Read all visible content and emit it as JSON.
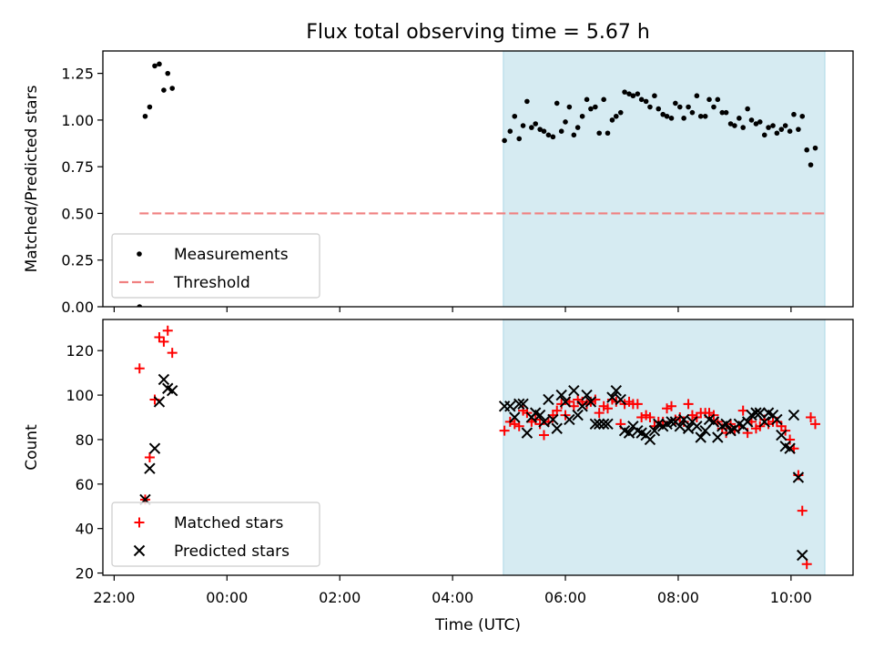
{
  "figure": {
    "title": "Flux total observing time = 5.67 h",
    "xlabel": "Time (UTC)",
    "x_ticks": [
      "22:00",
      "00:00",
      "02:00",
      "04:00",
      "06:00",
      "08:00",
      "10:00"
    ],
    "x_tick_hours": [
      -2,
      0,
      2,
      4,
      6,
      8,
      10
    ],
    "xlim_hours": [
      -2.2,
      11.1
    ],
    "shade_hours": [
      4.9,
      10.6
    ],
    "colors": {
      "shade": "#add8e6",
      "threshold": "#f08080",
      "matched": "#ff0000",
      "predicted": "#000000",
      "measurement": "#000000"
    }
  },
  "chart_data": [
    {
      "type": "scatter",
      "ylabel": "Matched/Predicted stars",
      "ylim": [
        0,
        1.37
      ],
      "y_ticks": [
        "0.00",
        "0.25",
        "0.50",
        "0.75",
        "1.00",
        "1.25"
      ],
      "y_tick_values": [
        0,
        0.25,
        0.5,
        0.75,
        1.0,
        1.25
      ],
      "threshold": {
        "name": "Threshold",
        "value": 0.5,
        "x_range_hours": [
          -1.55,
          10.6
        ]
      },
      "legend": {
        "placement": "lower-left",
        "entries": [
          "Measurements",
          "Threshold"
        ]
      },
      "series": [
        {
          "name": "Measurements",
          "marker": "dot",
          "points": [
            [
              -1.55,
              0.0
            ],
            [
              -1.45,
              1.02
            ],
            [
              -1.37,
              1.07
            ],
            [
              -1.28,
              1.29
            ],
            [
              -1.2,
              1.3
            ],
            [
              -1.12,
              1.16
            ],
            [
              -1.05,
              1.25
            ],
            [
              -0.97,
              1.17
            ],
            [
              4.92,
              0.89
            ],
            [
              5.02,
              0.94
            ],
            [
              5.1,
              1.02
            ],
            [
              5.18,
              0.9
            ],
            [
              5.25,
              0.97
            ],
            [
              5.32,
              1.1
            ],
            [
              5.4,
              0.96
            ],
            [
              5.47,
              0.98
            ],
            [
              5.55,
              0.95
            ],
            [
              5.62,
              0.94
            ],
            [
              5.7,
              0.92
            ],
            [
              5.78,
              0.91
            ],
            [
              5.85,
              1.09
            ],
            [
              5.93,
              0.94
            ],
            [
              6.0,
              0.99
            ],
            [
              6.07,
              1.07
            ],
            [
              6.15,
              0.92
            ],
            [
              6.22,
              0.96
            ],
            [
              6.3,
              1.02
            ],
            [
              6.38,
              1.11
            ],
            [
              6.45,
              1.06
            ],
            [
              6.53,
              1.07
            ],
            [
              6.6,
              0.93
            ],
            [
              6.68,
              1.11
            ],
            [
              6.75,
              0.93
            ],
            [
              6.83,
              1.0
            ],
            [
              6.9,
              1.02
            ],
            [
              6.98,
              1.04
            ],
            [
              7.05,
              1.15
            ],
            [
              7.13,
              1.14
            ],
            [
              7.2,
              1.13
            ],
            [
              7.28,
              1.14
            ],
            [
              7.35,
              1.11
            ],
            [
              7.43,
              1.1
            ],
            [
              7.5,
              1.07
            ],
            [
              7.58,
              1.13
            ],
            [
              7.65,
              1.06
            ],
            [
              7.73,
              1.03
            ],
            [
              7.8,
              1.02
            ],
            [
              7.88,
              1.01
            ],
            [
              7.95,
              1.09
            ],
            [
              8.03,
              1.07
            ],
            [
              8.1,
              1.01
            ],
            [
              8.18,
              1.07
            ],
            [
              8.25,
              1.04
            ],
            [
              8.33,
              1.13
            ],
            [
              8.4,
              1.02
            ],
            [
              8.48,
              1.02
            ],
            [
              8.55,
              1.11
            ],
            [
              8.63,
              1.07
            ],
            [
              8.7,
              1.11
            ],
            [
              8.78,
              1.04
            ],
            [
              8.85,
              1.04
            ],
            [
              8.93,
              0.98
            ],
            [
              9.0,
              0.97
            ],
            [
              9.08,
              1.01
            ],
            [
              9.15,
              0.96
            ],
            [
              9.23,
              1.06
            ],
            [
              9.3,
              1.0
            ],
            [
              9.38,
              0.98
            ],
            [
              9.45,
              0.99
            ],
            [
              9.53,
              0.92
            ],
            [
              9.6,
              0.96
            ],
            [
              9.68,
              0.97
            ],
            [
              9.75,
              0.93
            ],
            [
              9.83,
              0.95
            ],
            [
              9.9,
              0.97
            ],
            [
              9.98,
              0.94
            ],
            [
              10.05,
              1.03
            ],
            [
              10.13,
              0.95
            ],
            [
              10.2,
              1.02
            ],
            [
              10.28,
              0.84
            ],
            [
              10.35,
              0.76
            ],
            [
              10.43,
              0.85
            ]
          ]
        }
      ]
    },
    {
      "type": "scatter",
      "ylabel": "Count",
      "ylim": [
        19,
        134
      ],
      "y_ticks": [
        "20",
        "40",
        "60",
        "80",
        "100",
        "120"
      ],
      "y_tick_values": [
        20,
        40,
        60,
        80,
        100,
        120
      ],
      "legend": {
        "placement": "lower-left",
        "entries": [
          "Matched stars",
          "Predicted stars"
        ]
      },
      "series": [
        {
          "name": "Matched stars",
          "marker": "plus",
          "points": [
            [
              -1.55,
              112
            ],
            [
              -1.45,
              53
            ],
            [
              -1.37,
              72
            ],
            [
              -1.28,
              98
            ],
            [
              -1.2,
              126
            ],
            [
              -1.12,
              124
            ],
            [
              -1.05,
              129
            ],
            [
              -0.97,
              119
            ],
            [
              4.92,
              84
            ],
            [
              5.02,
              88
            ],
            [
              5.1,
              87
            ],
            [
              5.18,
              86
            ],
            [
              5.25,
              93
            ],
            [
              5.32,
              92
            ],
            [
              5.4,
              88
            ],
            [
              5.47,
              89
            ],
            [
              5.55,
              87
            ],
            [
              5.62,
              82
            ],
            [
              5.7,
              88
            ],
            [
              5.78,
              91
            ],
            [
              5.85,
              93
            ],
            [
              5.93,
              96
            ],
            [
              6.0,
              91
            ],
            [
              6.07,
              97
            ],
            [
              6.15,
              95
            ],
            [
              6.22,
              98
            ],
            [
              6.3,
              97
            ],
            [
              6.38,
              96
            ],
            [
              6.45,
              97
            ],
            [
              6.53,
              98
            ],
            [
              6.6,
              92
            ],
            [
              6.68,
              95
            ],
            [
              6.75,
              94
            ],
            [
              6.83,
              98
            ],
            [
              6.9,
              97
            ],
            [
              6.98,
              87
            ],
            [
              7.05,
              96
            ],
            [
              7.13,
              97
            ],
            [
              7.2,
              96
            ],
            [
              7.28,
              96
            ],
            [
              7.35,
              90
            ],
            [
              7.43,
              91
            ],
            [
              7.5,
              90
            ],
            [
              7.58,
              86
            ],
            [
              7.65,
              88
            ],
            [
              7.73,
              88
            ],
            [
              7.8,
              94
            ],
            [
              7.88,
              95
            ],
            [
              7.95,
              89
            ],
            [
              8.03,
              90
            ],
            [
              8.1,
              88
            ],
            [
              8.18,
              96
            ],
            [
              8.25,
              91
            ],
            [
              8.33,
              90
            ],
            [
              8.4,
              92
            ],
            [
              8.48,
              92
            ],
            [
              8.55,
              92
            ],
            [
              8.63,
              91
            ],
            [
              8.7,
              88
            ],
            [
              8.78,
              85
            ],
            [
              8.85,
              83
            ],
            [
              8.93,
              87
            ],
            [
              9.0,
              84
            ],
            [
              9.08,
              86
            ],
            [
              9.15,
              93
            ],
            [
              9.23,
              83
            ],
            [
              9.3,
              88
            ],
            [
              9.38,
              85
            ],
            [
              9.45,
              86
            ],
            [
              9.53,
              89
            ],
            [
              9.6,
              87
            ],
            [
              9.68,
              88
            ],
            [
              9.75,
              88
            ],
            [
              9.83,
              86
            ],
            [
              9.9,
              84
            ],
            [
              9.98,
              80
            ],
            [
              10.05,
              76
            ],
            [
              10.13,
              64
            ],
            [
              10.2,
              48
            ],
            [
              10.28,
              24
            ],
            [
              10.35,
              90
            ],
            [
              10.43,
              87
            ]
          ]
        },
        {
          "name": "Predicted stars",
          "marker": "x",
          "points": [
            [
              -1.45,
              53
            ],
            [
              -1.37,
              67
            ],
            [
              -1.28,
              76
            ],
            [
              -1.2,
              97
            ],
            [
              -1.12,
              107
            ],
            [
              -1.05,
              103
            ],
            [
              -0.97,
              102
            ],
            [
              4.92,
              95
            ],
            [
              5.02,
              95
            ],
            [
              5.1,
              90
            ],
            [
              5.18,
              96
            ],
            [
              5.25,
              96
            ],
            [
              5.32,
              83
            ],
            [
              5.4,
              90
            ],
            [
              5.47,
              92
            ],
            [
              5.55,
              91
            ],
            [
              5.62,
              88
            ],
            [
              5.7,
              98
            ],
            [
              5.78,
              89
            ],
            [
              5.85,
              85
            ],
            [
              5.93,
              100
            ],
            [
              6.0,
              97
            ],
            [
              6.07,
              89
            ],
            [
              6.15,
              102
            ],
            [
              6.22,
              91
            ],
            [
              6.3,
              95
            ],
            [
              6.38,
              100
            ],
            [
              6.45,
              97
            ],
            [
              6.53,
              87
            ],
            [
              6.6,
              87
            ],
            [
              6.68,
              87
            ],
            [
              6.75,
              87
            ],
            [
              6.83,
              99
            ],
            [
              6.9,
              102
            ],
            [
              6.98,
              98
            ],
            [
              7.05,
              84
            ],
            [
              7.13,
              83
            ],
            [
              7.2,
              86
            ],
            [
              7.28,
              84
            ],
            [
              7.35,
              83
            ],
            [
              7.43,
              82
            ],
            [
              7.5,
              80
            ],
            [
              7.58,
              84
            ],
            [
              7.65,
              87
            ],
            [
              7.73,
              86
            ],
            [
              7.8,
              87
            ],
            [
              7.88,
              88
            ],
            [
              7.95,
              88
            ],
            [
              8.03,
              86
            ],
            [
              8.1,
              89
            ],
            [
              8.18,
              85
            ],
            [
              8.25,
              88
            ],
            [
              8.33,
              86
            ],
            [
              8.4,
              81
            ],
            [
              8.48,
              84
            ],
            [
              8.55,
              89
            ],
            [
              8.63,
              88
            ],
            [
              8.7,
              81
            ],
            [
              8.78,
              86
            ],
            [
              8.85,
              87
            ],
            [
              8.93,
              84
            ],
            [
              9.0,
              85
            ],
            [
              9.08,
              87
            ],
            [
              9.15,
              86
            ],
            [
              9.23,
              88
            ],
            [
              9.3,
              91
            ],
            [
              9.38,
              92
            ],
            [
              9.45,
              92
            ],
            [
              9.53,
              88
            ],
            [
              9.6,
              92
            ],
            [
              9.68,
              91
            ],
            [
              9.75,
              89
            ],
            [
              9.83,
              82
            ],
            [
              9.9,
              77
            ],
            [
              9.98,
              76
            ],
            [
              10.05,
              91
            ],
            [
              10.13,
              63
            ],
            [
              10.2,
              28
            ]
          ]
        }
      ]
    }
  ]
}
